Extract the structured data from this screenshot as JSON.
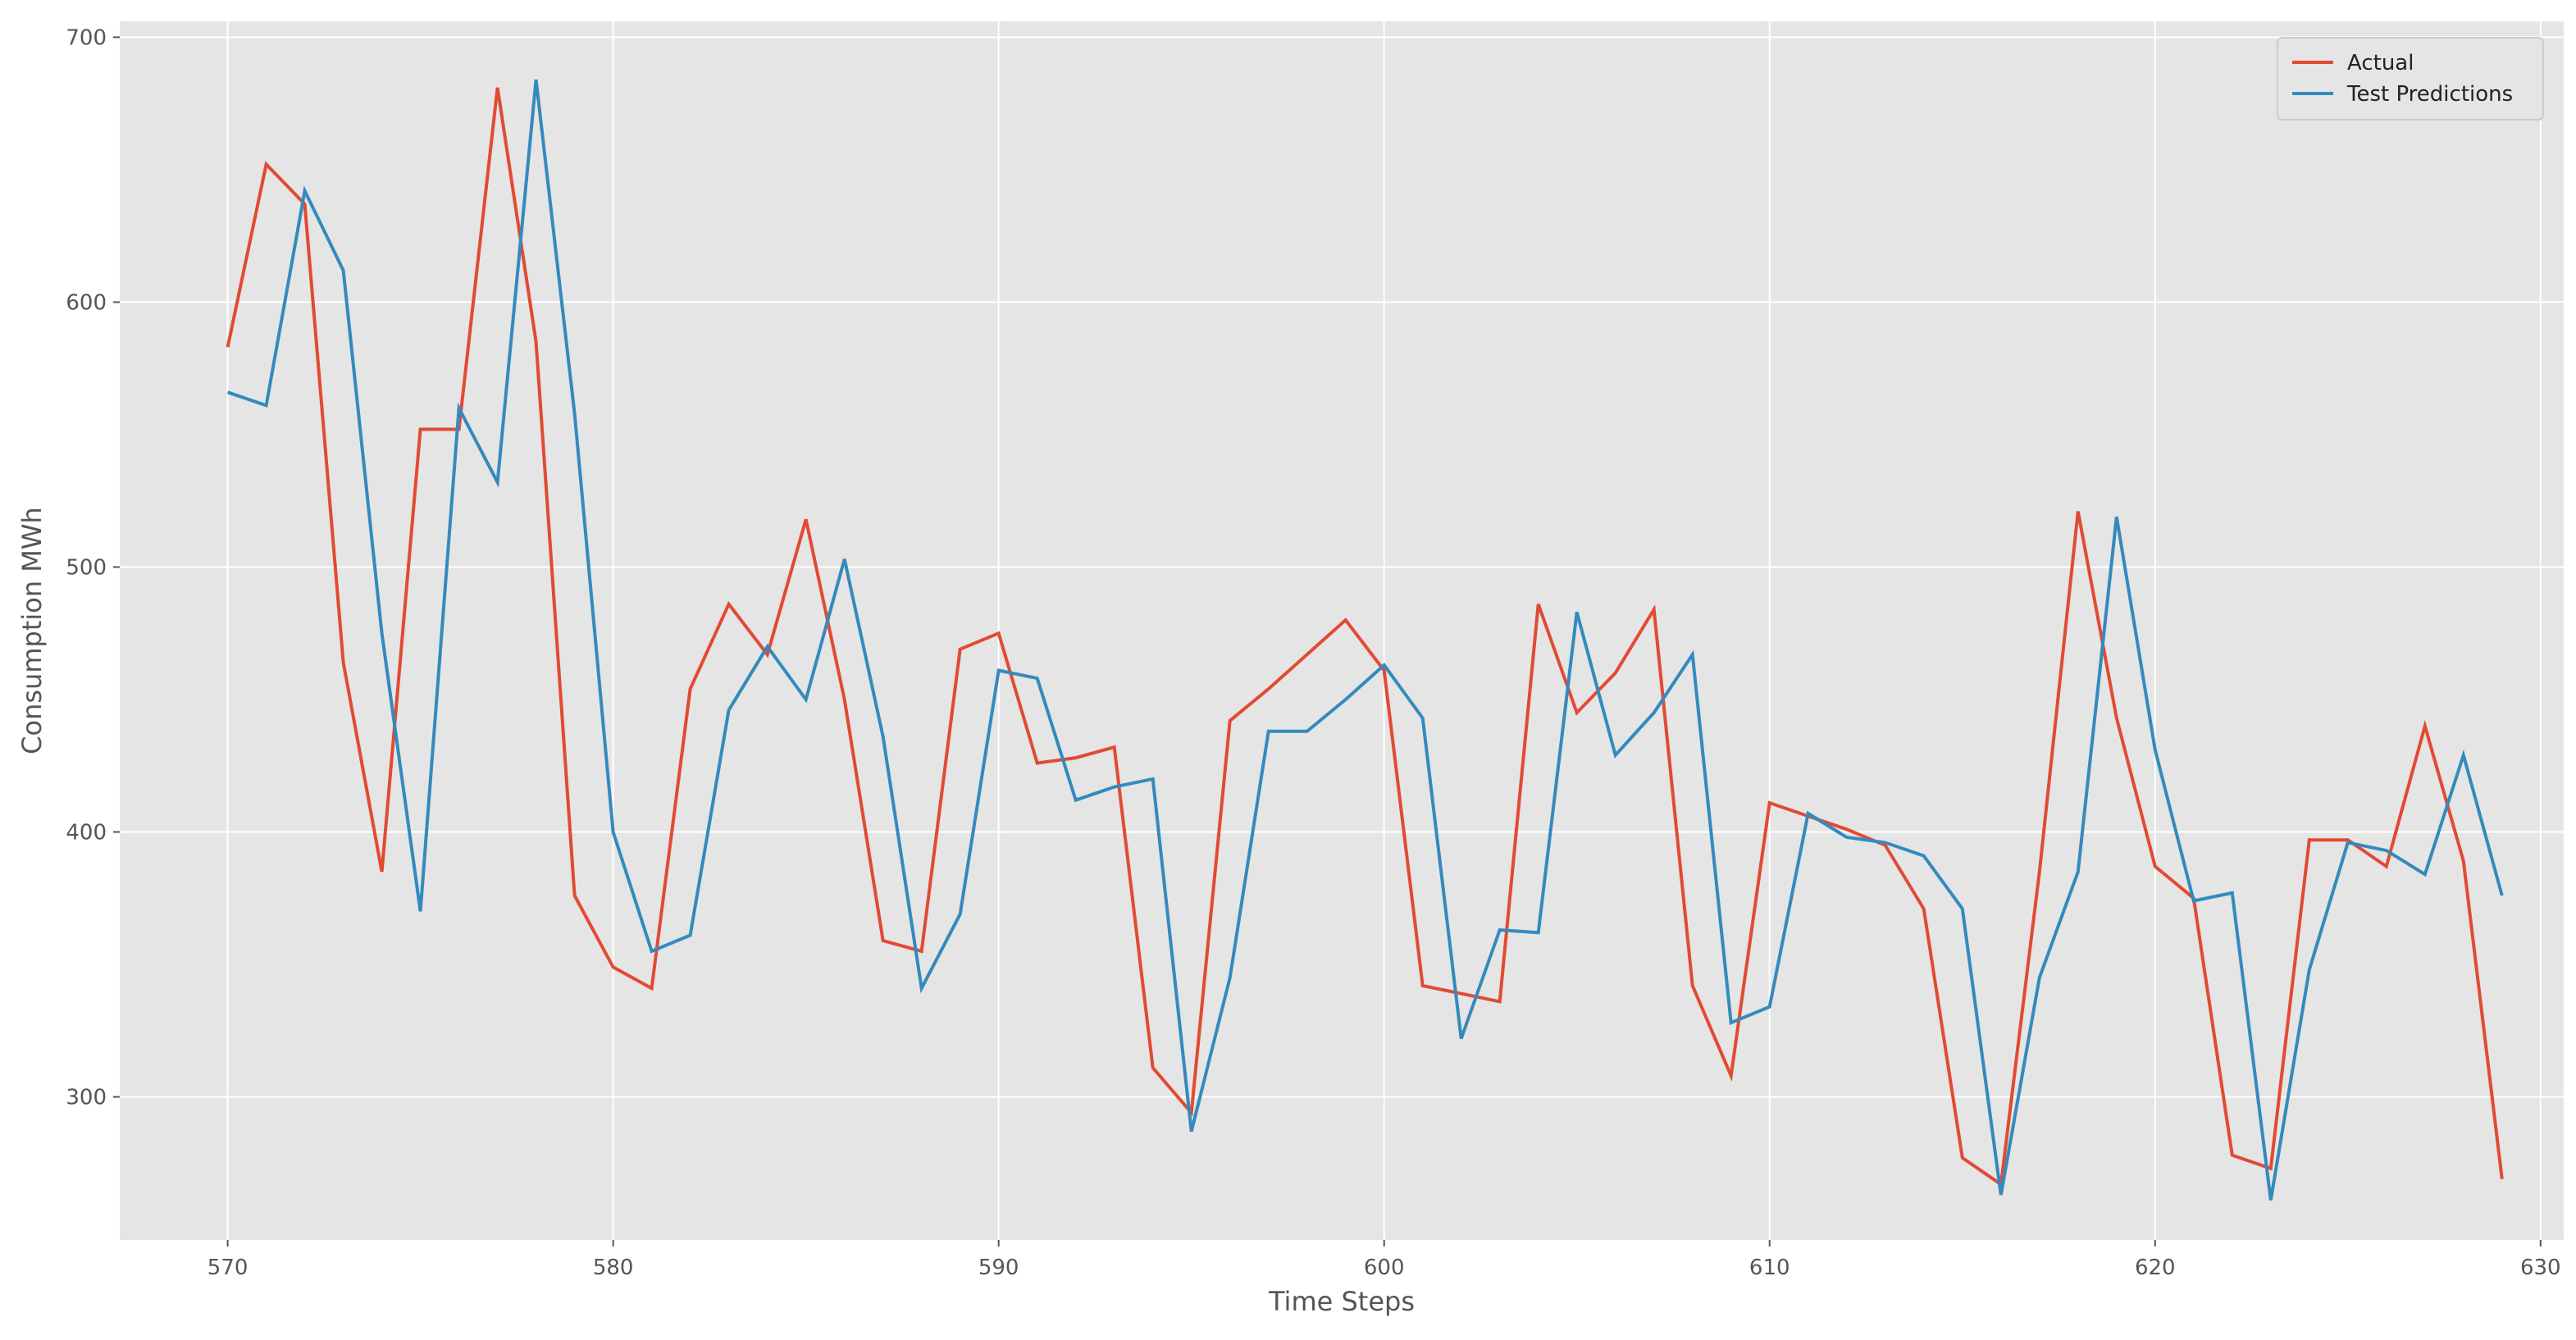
{
  "chart_data": {
    "type": "line",
    "xlabel": "Time Steps",
    "ylabel": "Consumption MWh",
    "xlim": [
      567.2,
      630.6
    ],
    "ylim": [
      246,
      706
    ],
    "xticks": [
      570,
      580,
      590,
      600,
      610,
      620,
      630
    ],
    "yticks": [
      300,
      400,
      500,
      600,
      700
    ],
    "grid": true,
    "legend": "top-right",
    "x": [
      570,
      571,
      572,
      573,
      574,
      575,
      576,
      577,
      578,
      579,
      580,
      581,
      582,
      583,
      584,
      585,
      586,
      587,
      588,
      589,
      590,
      591,
      592,
      593,
      594,
      595,
      596,
      597,
      598,
      599,
      600,
      601,
      602,
      603,
      604,
      605,
      606,
      607,
      608,
      609,
      610,
      611,
      612,
      613,
      614,
      615,
      616,
      617,
      618,
      619,
      620,
      621,
      622,
      623,
      624,
      625,
      626,
      627,
      628,
      629
    ],
    "series": [
      {
        "name": "Actual",
        "color": "#E24A33",
        "values": [
          583,
          652,
          637,
          464,
          385,
          552,
          552,
          681,
          585,
          376,
          349,
          341,
          454,
          486,
          467,
          518,
          450,
          359,
          355,
          469,
          475,
          426,
          428,
          432,
          311,
          294,
          442,
          454,
          467,
          480,
          461,
          342,
          339,
          336,
          486,
          445,
          460,
          484,
          342,
          308,
          411,
          406,
          401,
          395,
          371,
          277,
          267,
          385,
          521,
          443,
          387,
          375,
          278,
          273,
          397,
          397,
          387,
          440,
          389,
          269
        ]
      },
      {
        "name": "Test Predictions",
        "color": "#348ABD",
        "values": [
          566,
          561,
          642,
          612,
          475,
          370,
          560,
          532,
          684,
          558,
          400,
          355,
          361,
          446,
          470,
          450,
          503,
          436,
          341,
          369,
          461,
          458,
          412,
          417,
          420,
          287,
          345,
          438,
          438,
          450,
          463,
          443,
          322,
          363,
          362,
          483,
          429,
          445,
          467,
          328,
          334,
          407,
          398,
          396,
          391,
          371,
          263,
          345,
          385,
          519,
          431,
          374,
          377,
          261,
          348,
          396,
          393,
          384,
          429,
          376
        ]
      }
    ]
  }
}
